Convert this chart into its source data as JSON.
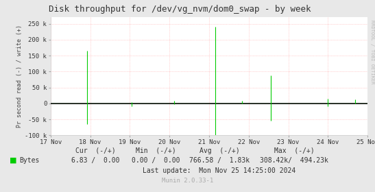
{
  "title": "Disk throughput for /dev/vg_nvm/dom0_swap - by week",
  "ylabel": "Pr second read (-) / write (+)",
  "background_color": "#e8e8e8",
  "plot_bg_color": "#ffffff",
  "grid_color": "#ffaaaa",
  "line_color": "#00cc00",
  "zero_line_color": "#111111",
  "ylim": [
    -100000,
    270000
  ],
  "yticks": [
    -100000,
    -50000,
    0,
    50000,
    100000,
    150000,
    200000,
    250000
  ],
  "ytick_labels": [
    "-100 k",
    "-50 k",
    "0",
    "50 k",
    "100 k",
    "150 k",
    "200 k",
    "250 k"
  ],
  "xtick_labels": [
    "17 Nov",
    "18 Nov",
    "19 Nov",
    "20 Nov",
    "21 Nov",
    "22 Nov",
    "23 Nov",
    "24 Nov",
    "25 Nov"
  ],
  "rrdtool_label": "RRDTOOL / TOBI OETIKER",
  "legend_label": "Bytes",
  "legend_color": "#00cc00",
  "cur_label": "Cur  (-/+)",
  "cur_neg": "6.83 /",
  "cur_pos": "0.00",
  "min_label": "Min  (-/+)",
  "min_neg": "0.00 /",
  "min_pos": "0.00",
  "avg_label": "Avg  (-/+)",
  "avg_neg": "766.58 /",
  "avg_pos": "1.83k",
  "max_label": "Max  (-/+)",
  "max_neg": "308.42k/",
  "max_pos": "494.23k",
  "last_update": "Last update:  Mon Nov 25 14:25:00 2024",
  "munin_label": "Munin 2.0.33-1",
  "spike_data": [
    [
      0.115,
      165000
    ],
    [
      0.115,
      -65000
    ],
    [
      0.255,
      -8000
    ],
    [
      0.255,
      5000
    ],
    [
      0.39,
      8000
    ],
    [
      0.39,
      -3000
    ],
    [
      0.52,
      240000
    ],
    [
      0.52,
      -107000
    ],
    [
      0.605,
      8000
    ],
    [
      0.695,
      88000
    ],
    [
      0.695,
      -53000
    ],
    [
      0.875,
      15000
    ],
    [
      0.875,
      -8000
    ],
    [
      0.96,
      12000
    ]
  ]
}
